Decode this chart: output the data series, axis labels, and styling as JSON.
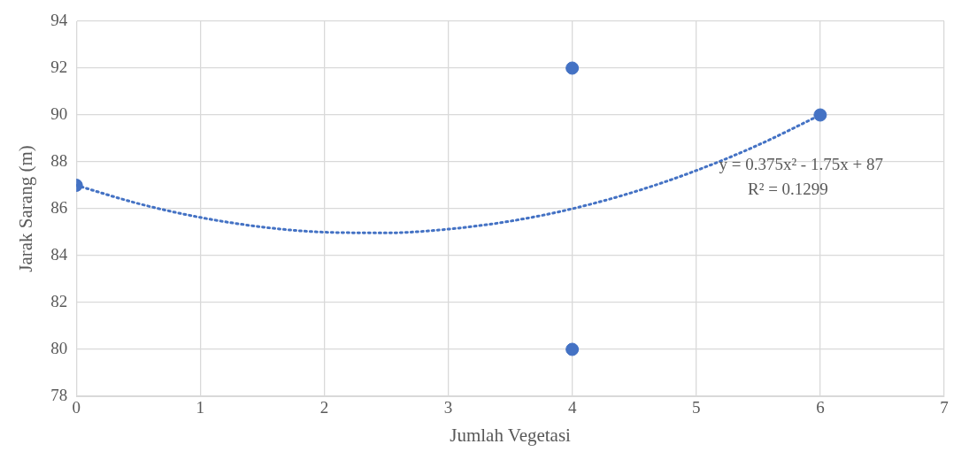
{
  "chart_data": {
    "type": "scatter",
    "xlabel": "Jumlah Vegetasi",
    "ylabel": "Jarak Sarang (m)",
    "xlim": [
      0,
      7
    ],
    "xticks": [
      0,
      1,
      2,
      3,
      4,
      5,
      6,
      7
    ],
    "ylim": [
      78,
      94
    ],
    "yticks": [
      78,
      80,
      82,
      84,
      86,
      88,
      90,
      92,
      94
    ],
    "grid": true,
    "legend": false,
    "marker": "circle",
    "series": [
      {
        "color": "#4472c4",
        "x": [
          0,
          4,
          4,
          6
        ],
        "values": [
          87,
          92,
          80,
          90
        ]
      },
      {
        "type": "line",
        "color": "#4472c4",
        "line_style": "dotted",
        "marker": "none",
        "x": [
          0,
          0.5,
          1,
          1.5,
          2,
          2.5,
          3,
          3.5,
          4,
          4.5,
          5,
          5.5,
          6
        ],
        "values": [
          87,
          86.22,
          85.63,
          85.22,
          85,
          84.97,
          85.13,
          85.47,
          86,
          86.72,
          87.63,
          88.72,
          90
        ]
      }
    ],
    "annotations": [
      "y = 0.375x² - 1.75x + 87",
      "R² = 0.1299"
    ]
  }
}
